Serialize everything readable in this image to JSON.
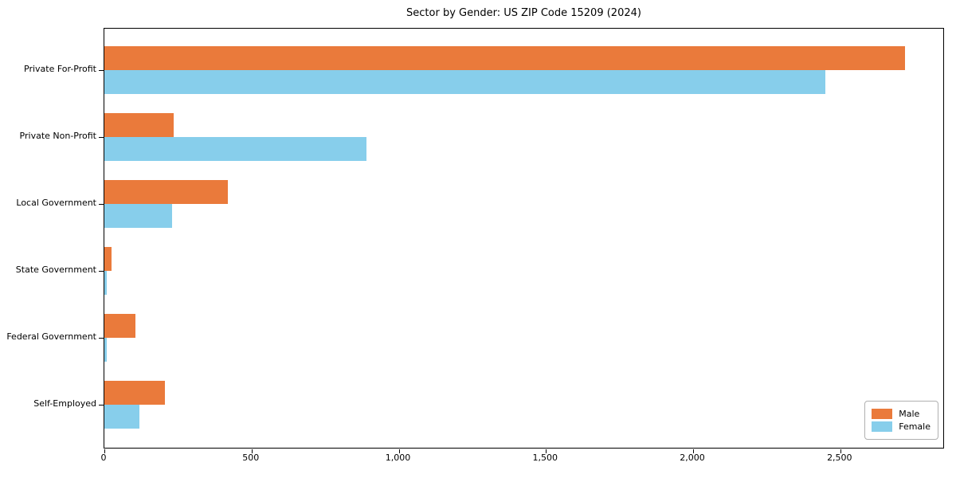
{
  "chart_data": {
    "type": "bar",
    "orientation": "horizontal",
    "title": "Sector by Gender: US ZIP Code 15209 (2024)",
    "categories": [
      "Private For-Profit",
      "Private Non-Profit",
      "Local Government",
      "State Government",
      "Federal Government",
      "Self-Employed"
    ],
    "series": [
      {
        "name": "Male",
        "color": "#ea7a3b",
        "values": [
          2720,
          235,
          420,
          25,
          105,
          205
        ]
      },
      {
        "name": "Female",
        "color": "#87ceeb",
        "values": [
          2450,
          890,
          230,
          8,
          8,
          120
        ]
      }
    ],
    "xlabel": "",
    "ylabel": "",
    "xlim": [
      0,
      2855
    ],
    "x_ticks": [
      0,
      500,
      1000,
      1500,
      2000,
      2500
    ],
    "x_tick_labels": [
      "0",
      "500",
      "1,000",
      "1,500",
      "2,000",
      "2,500"
    ],
    "grid": false,
    "legend_position": "lower right",
    "colors": {
      "axis": "#000000",
      "legend_border": "#b0b0b0",
      "background": "#ffffff"
    }
  }
}
